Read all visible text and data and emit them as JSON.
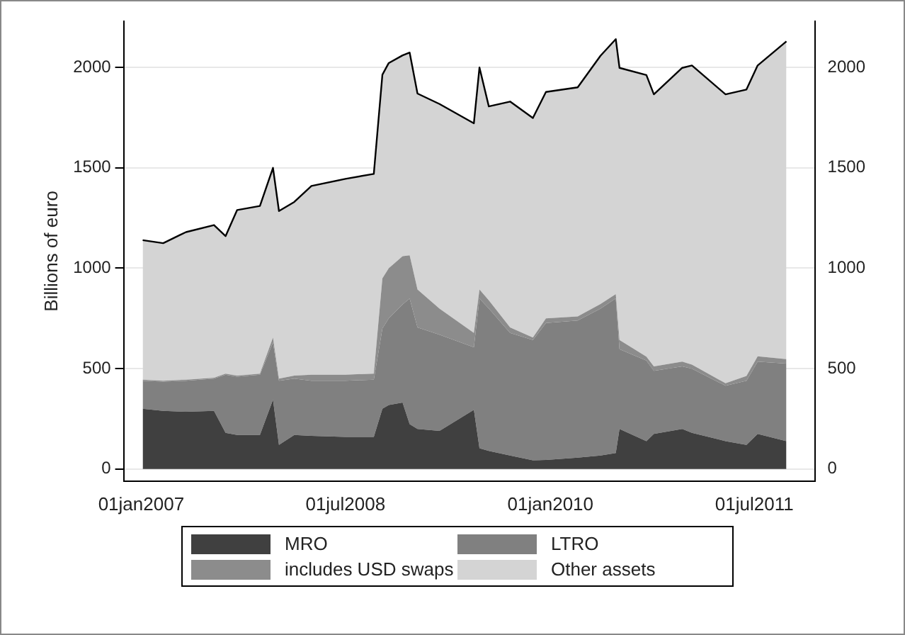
{
  "chart_data": {
    "type": "area",
    "stacked": true,
    "ylabel": "Billions of euro",
    "x": [
      "2007-01-05",
      "2007-03-01",
      "2007-05-01",
      "2007-07-15",
      "2007-08-15",
      "2007-09-15",
      "2007-11-15",
      "2007-12-20",
      "2008-01-05",
      "2008-02-15",
      "2008-04-01",
      "2008-07-01",
      "2008-09-15",
      "2008-10-08",
      "2008-10-25",
      "2008-12-01",
      "2008-12-20",
      "2009-01-10",
      "2009-03-10",
      "2009-06-10",
      "2009-06-25",
      "2009-07-20",
      "2009-09-15",
      "2009-11-15",
      "2009-12-20",
      "2010-03-15",
      "2010-05-15",
      "2010-06-25",
      "2010-07-05",
      "2010-09-15",
      "2010-10-05",
      "2010-12-20",
      "2011-01-15",
      "2011-04-15",
      "2011-06-10",
      "2011-07-10",
      "2011-09-25"
    ],
    "series": [
      {
        "name": "MRO",
        "color": "#404040",
        "values": [
          300,
          290,
          285,
          290,
          180,
          170,
          170,
          345,
          120,
          170,
          165,
          160,
          160,
          300,
          319,
          331,
          223,
          200,
          190,
          295,
          103,
          90,
          67,
          43,
          45,
          57,
          67,
          80,
          200,
          139,
          175,
          200,
          180,
          139,
          120,
          175,
          139
        ]
      },
      {
        "name": "LTRO",
        "color": "#808080",
        "values": [
          140,
          145,
          155,
          160,
          290,
          290,
          300,
          285,
          320,
          280,
          275,
          280,
          285,
          400,
          431,
          489,
          626,
          505,
          479,
          311,
          746,
          710,
          611,
          600,
          682,
          683,
          732,
          770,
          397,
          401,
          314,
          311,
          320,
          276,
          320,
          360,
          386
        ]
      },
      {
        "name": "includes USD swaps",
        "color": "#8c8c8c",
        "values": [
          5,
          5,
          5,
          5,
          5,
          5,
          5,
          25,
          10,
          15,
          30,
          30,
          30,
          250,
          250,
          240,
          215,
          189,
          130,
          72,
          45,
          40,
          27,
          12,
          23,
          20,
          23,
          21,
          46,
          20,
          22,
          24,
          20,
          12,
          23,
          26,
          22
        ]
      },
      {
        "name": "Other assets",
        "color": "#d4d4d4",
        "values": [
          695,
          685,
          735,
          760,
          685,
          825,
          835,
          845,
          835,
          865,
          940,
          975,
          995,
          1014,
          1022,
          1000,
          1010,
          976,
          1019,
          1044,
          1106,
          966,
          1125,
          1093,
          1128,
          1141,
          1236,
          1270,
          1355,
          1402,
          1355,
          1463,
          1490,
          1439,
          1427,
          1449,
          1583
        ]
      }
    ],
    "xlim": [
      "2006-11-15",
      "2011-12-10"
    ],
    "xticks": [
      {
        "value": "2007-01-01",
        "label": "01jan2007"
      },
      {
        "value": "2008-07-01",
        "label": "01jul2008"
      },
      {
        "value": "2010-01-01",
        "label": "01jan2010"
      },
      {
        "value": "2011-07-01",
        "label": "01jul2011"
      }
    ],
    "ylim": [
      -60,
      2230
    ],
    "yticks": [
      0,
      500,
      1000,
      1500,
      2000
    ],
    "y2lim": [
      -60,
      2230
    ],
    "y2ticks": [
      0,
      500,
      1000,
      1500,
      2000
    ],
    "grid": "y",
    "legend": "bottom"
  }
}
